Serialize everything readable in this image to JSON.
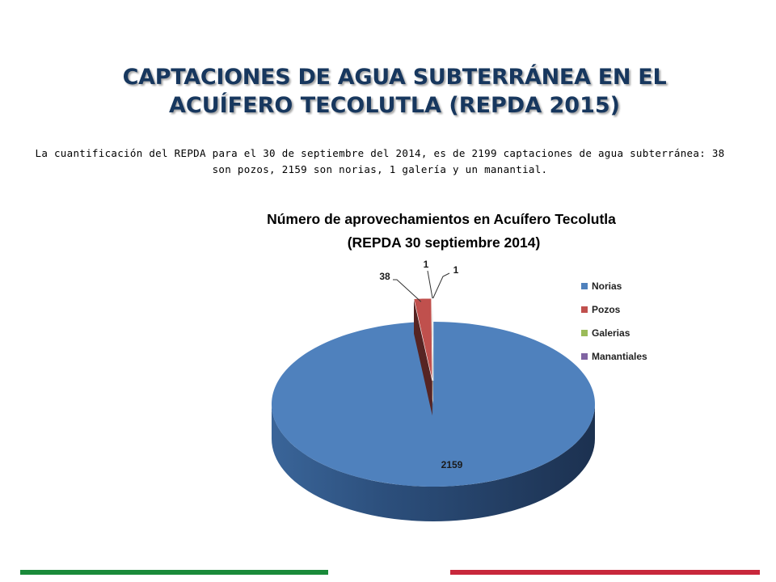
{
  "slide": {
    "title_line1": "CAPTACIONES DE AGUA SUBTERRÁNEA EN EL",
    "title_line2": "ACUÍFERO TECOLUTLA (REPDA 2015)",
    "body": "La cuantificación del REPDA para el 30 de septiembre del 2014, es de 2199 captaciones de agua subterránea:  38 son pozos, 2159 son norias, 1 galería y un manantial."
  },
  "chart_data": {
    "type": "pie",
    "title_line1": "Número de aprovechamientos en Acuífero Tecolutla",
    "title_line2": "(REPDA 30 septiembre 2014)",
    "categories": [
      "Norias",
      "Pozos",
      "Galerias",
      "Manantiales"
    ],
    "values": [
      2159,
      38,
      1,
      1
    ],
    "colors": [
      "#4f81bd",
      "#c0504d",
      "#9bbb59",
      "#8064a2"
    ],
    "style": "3D exploded pie",
    "legend_position": "right"
  },
  "colors": {
    "title": "#17375e",
    "footer_green": "#1a8a3a",
    "footer_red": "#c8283c"
  }
}
